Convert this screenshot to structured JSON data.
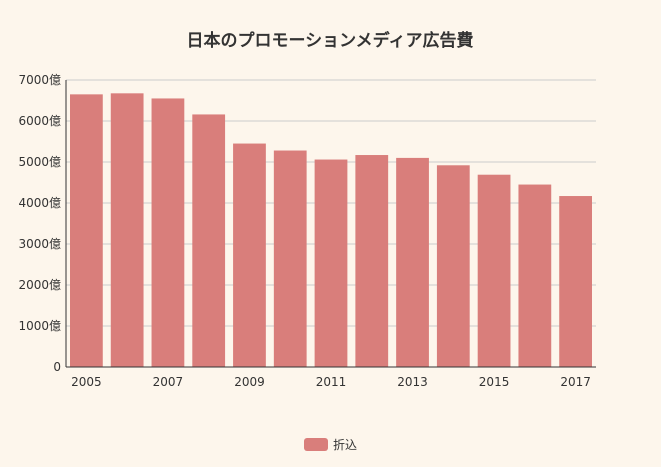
{
  "colors": {
    "background": "#fdf6ec",
    "bar": "#d97e7b",
    "grid": "#cccccc",
    "axis": "#333333",
    "text": "#333333"
  },
  "chart_data": {
    "type": "bar",
    "title": "日本のプロモーションメディア広告費",
    "xlabel": "",
    "ylabel": "",
    "categories": [
      "2005",
      "2006",
      "2007",
      "2008",
      "2009",
      "2010",
      "2011",
      "2012",
      "2013",
      "2014",
      "2015",
      "2016",
      "2017"
    ],
    "x_tick_labels": [
      "2005",
      "",
      "2007",
      "",
      "2009",
      "",
      "2011",
      "",
      "2013",
      "",
      "2015",
      "",
      "2017"
    ],
    "series": [
      {
        "name": "折込",
        "values": [
          6650,
          6675,
          6550,
          6160,
          5450,
          5280,
          5060,
          5170,
          5100,
          4920,
          4690,
          4450,
          4170
        ]
      }
    ],
    "ylim": [
      0,
      7000
    ],
    "y_tick_labels": [
      "0",
      "1000億",
      "2000億",
      "3000億",
      "4000億",
      "5000億",
      "6000億",
      "7000億"
    ],
    "grid": true,
    "legend_position": "bottom-center"
  }
}
